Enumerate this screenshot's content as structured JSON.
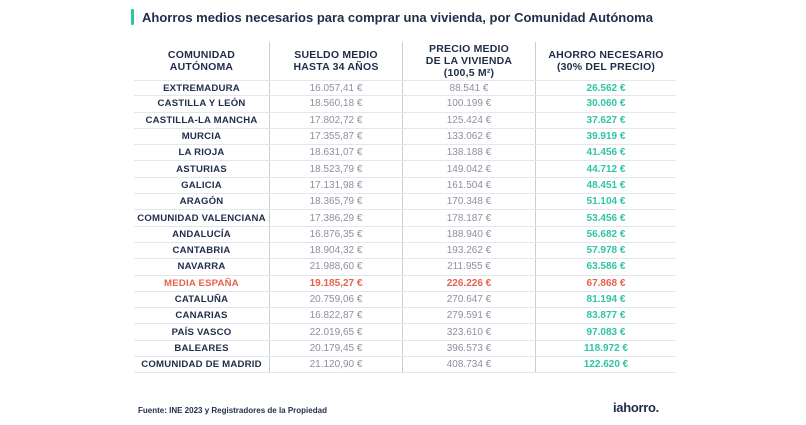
{
  "title": "Ahorros medios necesarios para comprar una vivienda, por Comunidad Autónoma",
  "colors": {
    "accent": "#2ec4a6",
    "highlight": "#e5624e",
    "text": "#1f2d4a",
    "muted": "#8a91a0"
  },
  "chart_data": {
    "type": "table",
    "title": "Ahorros medios necesarios para comprar una vivienda, por Comunidad Autónoma",
    "columns": [
      [
        "COMUNIDAD",
        "AUTÓNOMA"
      ],
      [
        "SUELDO MEDIO",
        "HASTA 34 AÑOS"
      ],
      [
        "PRECIO MEDIO",
        "DE LA VIVIENDA",
        "(100,5 M²)"
      ],
      [
        "AHORRO NECESARIO",
        "(30% DEL PRECIO)"
      ]
    ],
    "rows": [
      {
        "region": "EXTREMADURA",
        "salary": "16.057,41 €",
        "price": "88.541 €",
        "saving": "26.562 €"
      },
      {
        "region": "CASTILLA Y LEÓN",
        "salary": "18.560,18 €",
        "price": "100.199 €",
        "saving": "30.060 €"
      },
      {
        "region": "CASTILLA-LA MANCHA",
        "salary": "17.802,72 €",
        "price": "125.424 €",
        "saving": "37.627 €"
      },
      {
        "region": "MURCIA",
        "salary": "17.355,87 €",
        "price": "133.062 €",
        "saving": "39.919 €"
      },
      {
        "region": "LA RIOJA",
        "salary": "18.631,07 €",
        "price": "138.188 €",
        "saving": "41.456 €"
      },
      {
        "region": "ASTURIAS",
        "salary": "18.523,79 €",
        "price": "149.042 €",
        "saving": "44.712 €"
      },
      {
        "region": "GALICIA",
        "salary": "17.131,98 €",
        "price": "161.504 €",
        "saving": "48.451 €"
      },
      {
        "region": "ARAGÓN",
        "salary": "18.365,79 €",
        "price": "170.348 €",
        "saving": "51.104 €"
      },
      {
        "region": "COMUNIDAD VALENCIANA",
        "salary": "17.386,29 €",
        "price": "178.187 €",
        "saving": "53.456 €"
      },
      {
        "region": "ANDALUCÍA",
        "salary": "16.876,35 €",
        "price": "188.940 €",
        "saving": "56.682 €"
      },
      {
        "region": "CANTABRIA",
        "salary": "18.904,32 €",
        "price": "193.262 €",
        "saving": "57.978 €"
      },
      {
        "region": "NAVARRA",
        "salary": "21.988,60 €",
        "price": "211.955 €",
        "saving": "63.586 €"
      },
      {
        "region": "MEDIA ESPAÑA",
        "salary": "19.185,27 €",
        "price": "226.226 €",
        "saving": "67.868 €",
        "highlight": true
      },
      {
        "region": "CATALUÑA",
        "salary": "20.759,06 €",
        "price": "270.647 €",
        "saving": "81.194 €"
      },
      {
        "region": "CANARIAS",
        "salary": "16.822,87 €",
        "price": "279.591 €",
        "saving": "83.877 €"
      },
      {
        "region": "PAÍS VASCO",
        "salary": "22.019,65 €",
        "price": "323.610 €",
        "saving": "97.083 €"
      },
      {
        "region": "BALEARES",
        "salary": "20.179,45 €",
        "price": "396.573 €",
        "saving": "118.972 €"
      },
      {
        "region": "COMUNIDAD DE MADRID",
        "salary": "21.120,90 €",
        "price": "408.734 €",
        "saving": "122.620 €"
      }
    ]
  },
  "footer": {
    "source": "Fuente: INE 2023 y Registradores de la Propiedad",
    "logo": "iahorro."
  }
}
